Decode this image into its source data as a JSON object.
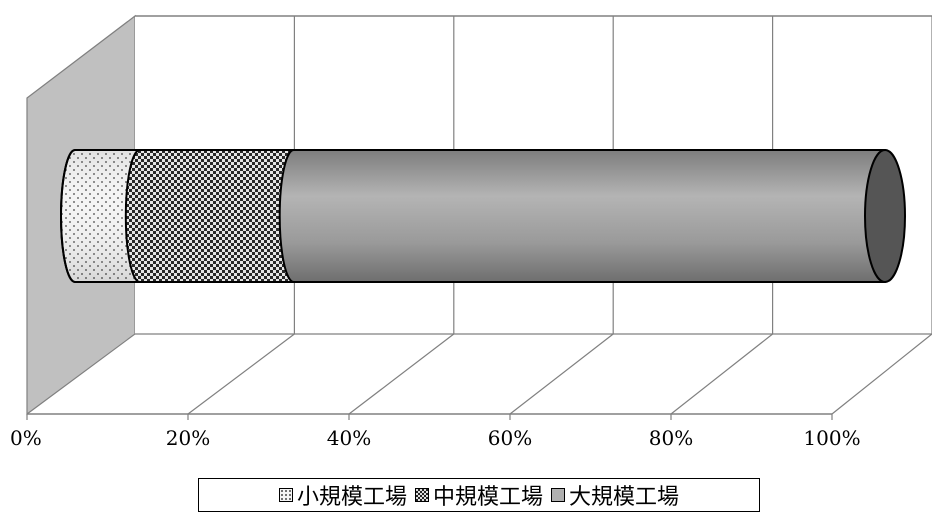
{
  "chart_data": {
    "type": "bar",
    "orientation": "horizontal",
    "stacked": "percent",
    "style": "3d-cylinder",
    "title": "",
    "xlabel": "",
    "ylabel": "",
    "xlim": [
      0,
      100
    ],
    "ticks": [
      "0%",
      "20%",
      "40%",
      "60%",
      "80%",
      "100%"
    ],
    "grid": true,
    "legend_position": "bottom",
    "series": [
      {
        "name": "小規模工場",
        "values": [
          8
        ],
        "pattern": "dots",
        "color": "#f2f2f2"
      },
      {
        "name": "中規模工場",
        "values": [
          19
        ],
        "pattern": "checker",
        "color": "#5a5a5a"
      },
      {
        "name": "大規模工場",
        "values": [
          73
        ],
        "pattern": "solid",
        "color": "#9e9e9e"
      }
    ]
  }
}
